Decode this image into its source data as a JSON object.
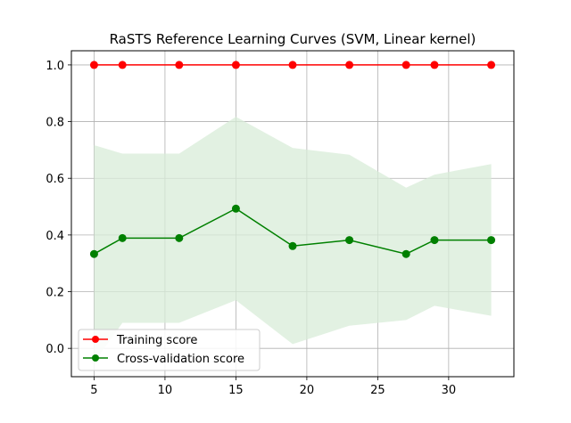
{
  "chart_data": {
    "type": "line",
    "title": "RaSTS Reference Learning Curves (SVM, Linear kernel)",
    "xlabel": "",
    "ylabel": "",
    "xlim": [
      3.4,
      34.6
    ],
    "ylim": [
      -0.1,
      1.05
    ],
    "xticks": [
      5,
      10,
      15,
      20,
      25,
      30
    ],
    "yticks": [
      0.0,
      0.2,
      0.4,
      0.6,
      0.8,
      1.0
    ],
    "xtick_labels": [
      "5",
      "10",
      "15",
      "20",
      "25",
      "30"
    ],
    "ytick_labels": [
      "0.0",
      "0.2",
      "0.4",
      "0.6",
      "0.8",
      "1.0"
    ],
    "grid": true,
    "legend_position": "lower-left",
    "x": [
      5,
      7,
      11,
      15,
      19,
      23,
      27,
      29,
      33
    ],
    "series": [
      {
        "name": "Training score",
        "color": "#ff0000",
        "values": [
          1.0,
          1.0,
          1.0,
          1.0,
          1.0,
          1.0,
          1.0,
          1.0,
          1.0
        ]
      },
      {
        "name": "Cross-validation score",
        "color": "#008000",
        "values": [
          0.333,
          0.389,
          0.389,
          0.493,
          0.361,
          0.382,
          0.333,
          0.382,
          0.382
        ],
        "band_upper": [
          0.717,
          0.687,
          0.687,
          0.817,
          0.707,
          0.683,
          0.567,
          0.613,
          0.65
        ],
        "band_lower": [
          -0.05,
          0.09,
          0.09,
          0.17,
          0.015,
          0.08,
          0.1,
          0.15,
          0.115
        ],
        "band_color": "#d8ecd8"
      }
    ]
  }
}
